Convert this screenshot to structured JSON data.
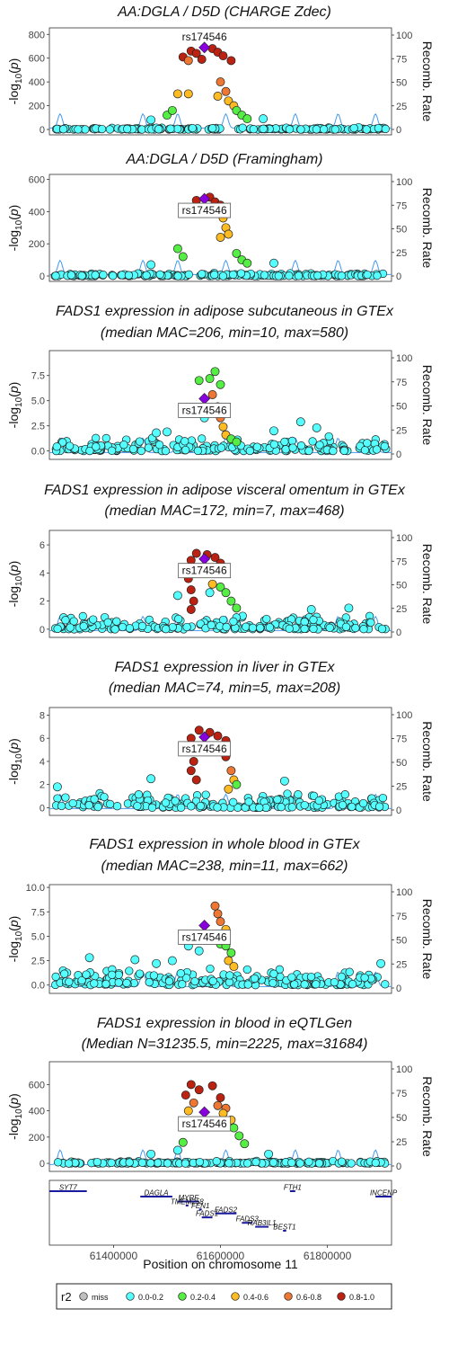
{
  "chart_data": [
    {
      "type": "scatter",
      "title_lines": [
        "AA:DGLA / D5D (CHARGE Zdec)"
      ],
      "ylabel": "-log10(p)",
      "y2label": "Recomb. Rate",
      "ylim": [
        0,
        840
      ],
      "yticks": [
        0,
        200,
        400,
        600,
        800
      ],
      "y2ticks": [
        0,
        25,
        50,
        75,
        100
      ],
      "lead_snp": {
        "label": "rs174546",
        "x": 61570000,
        "y": 690
      },
      "label_boxed": false,
      "points": [
        {
          "x": 61530000,
          "y": 610,
          "r2": "0.8-1.0"
        },
        {
          "x": 61545000,
          "y": 660,
          "r2": "0.8-1.0"
        },
        {
          "x": 61555000,
          "y": 640,
          "r2": "0.8-1.0"
        },
        {
          "x": 61565000,
          "y": 590,
          "r2": "0.8-1.0"
        },
        {
          "x": 61585000,
          "y": 680,
          "r2": "0.8-1.0"
        },
        {
          "x": 61595000,
          "y": 650,
          "r2": "0.8-1.0"
        },
        {
          "x": 61605000,
          "y": 620,
          "r2": "0.8-1.0"
        },
        {
          "x": 61620000,
          "y": 580,
          "r2": "0.8-1.0"
        },
        {
          "x": 61540000,
          "y": 580,
          "r2": "0.6-0.8"
        },
        {
          "x": 61600000,
          "y": 400,
          "r2": "0.6-0.8"
        },
        {
          "x": 61610000,
          "y": 320,
          "r2": "0.6-0.8"
        },
        {
          "x": 61520000,
          "y": 300,
          "r2": "0.4-0.6"
        },
        {
          "x": 61540000,
          "y": 300,
          "r2": "0.4-0.6"
        },
        {
          "x": 61595000,
          "y": 280,
          "r2": "0.4-0.6"
        },
        {
          "x": 61615000,
          "y": 240,
          "r2": "0.4-0.6"
        },
        {
          "x": 61625000,
          "y": 200,
          "r2": "0.4-0.6"
        },
        {
          "x": 61500000,
          "y": 120,
          "r2": "0.2-0.4"
        },
        {
          "x": 61510000,
          "y": 160,
          "r2": "0.2-0.4"
        },
        {
          "x": 61630000,
          "y": 160,
          "r2": "0.2-0.4"
        },
        {
          "x": 61640000,
          "y": 120,
          "r2": "0.2-0.4"
        },
        {
          "x": 61650000,
          "y": 90,
          "r2": "0.2-0.4"
        },
        {
          "x": 61470000,
          "y": 80,
          "r2": "0.0-0.2"
        },
        {
          "x": 61680000,
          "y": 90,
          "r2": "0.0-0.2"
        }
      ],
      "noise_max": 20
    },
    {
      "type": "scatter",
      "title_lines": [
        "AA:DGLA / D5D (Framingham)"
      ],
      "ylabel": "-log10(p)",
      "y2label": "Recomb. Rate",
      "ylim": [
        0,
        620
      ],
      "yticks": [
        0,
        200,
        400,
        600
      ],
      "y2ticks": [
        0,
        25,
        50,
        75,
        100
      ],
      "lead_snp": {
        "label": "rs174546",
        "x": 61570000,
        "y": 480
      },
      "label_boxed": true,
      "points": [
        {
          "x": 61555000,
          "y": 470,
          "r2": "0.8-1.0"
        },
        {
          "x": 61580000,
          "y": 490,
          "r2": "0.8-1.0"
        },
        {
          "x": 61590000,
          "y": 460,
          "r2": "0.8-1.0"
        },
        {
          "x": 61600000,
          "y": 440,
          "r2": "0.8-1.0"
        },
        {
          "x": 61595000,
          "y": 400,
          "r2": "0.6-0.8"
        },
        {
          "x": 61605000,
          "y": 360,
          "r2": "0.4-0.6"
        },
        {
          "x": 61610000,
          "y": 300,
          "r2": "0.4-0.6"
        },
        {
          "x": 61615000,
          "y": 260,
          "r2": "0.4-0.6"
        },
        {
          "x": 61600000,
          "y": 240,
          "r2": "0.4-0.6"
        },
        {
          "x": 61520000,
          "y": 170,
          "r2": "0.2-0.4"
        },
        {
          "x": 61530000,
          "y": 120,
          "r2": "0.2-0.4"
        },
        {
          "x": 61630000,
          "y": 140,
          "r2": "0.2-0.4"
        },
        {
          "x": 61640000,
          "y": 100,
          "r2": "0.2-0.4"
        },
        {
          "x": 61650000,
          "y": 80,
          "r2": "0.2-0.4"
        },
        {
          "x": 61470000,
          "y": 70,
          "r2": "0.0-0.2"
        },
        {
          "x": 61700000,
          "y": 80,
          "r2": "0.0-0.2"
        }
      ],
      "noise_max": 20
    },
    {
      "type": "scatter",
      "title_lines": [
        "FADS1 expression in adipose subcutaneous in GTEx",
        "(median MAC=206, min=10, max=580)"
      ],
      "ylabel": "-log10(p)",
      "y2label": "Recomb. Rate",
      "ylim": [
        -0.3,
        9.8
      ],
      "yticks": [
        0,
        2.5,
        5,
        7.5
      ],
      "ytick_labels": [
        "0.0",
        "2.5",
        "5.0",
        "7.5"
      ],
      "y2ticks": [
        0,
        25,
        50,
        75,
        100
      ],
      "lead_snp": {
        "label": "rs174546",
        "x": 61570000,
        "y": 5.2
      },
      "label_boxed": true,
      "points": [
        {
          "x": 61590000,
          "y": 7.9,
          "r2": "0.2-0.4"
        },
        {
          "x": 61580000,
          "y": 7.2,
          "r2": "0.2-0.4"
        },
        {
          "x": 61560000,
          "y": 7.0,
          "r2": "0.2-0.4"
        },
        {
          "x": 61600000,
          "y": 6.6,
          "r2": "0.2-0.4"
        },
        {
          "x": 61585000,
          "y": 5.6,
          "r2": "0.6-0.8"
        },
        {
          "x": 61595000,
          "y": 4.4,
          "r2": "0.8-1.0"
        },
        {
          "x": 61600000,
          "y": 3.3,
          "r2": "0.6-0.8"
        },
        {
          "x": 61590000,
          "y": 3.9,
          "r2": "0.6-0.8"
        },
        {
          "x": 61605000,
          "y": 2.4,
          "r2": "0.4-0.6"
        },
        {
          "x": 61610000,
          "y": 1.6,
          "r2": "0.4-0.6"
        },
        {
          "x": 61620000,
          "y": 1.2,
          "r2": "0.2-0.4"
        },
        {
          "x": 61630000,
          "y": 0.9,
          "r2": "0.2-0.4"
        },
        {
          "x": 61570000,
          "y": 3.3,
          "r2": "0.0-0.2"
        },
        {
          "x": 61750000,
          "y": 2.9,
          "r2": "0.0-0.2"
        },
        {
          "x": 61780000,
          "y": 2.3,
          "r2": "0.0-0.2"
        },
        {
          "x": 61700000,
          "y": 2.0,
          "r2": "0.0-0.2"
        },
        {
          "x": 61480000,
          "y": 1.8,
          "r2": "0.0-0.2"
        },
        {
          "x": 61500000,
          "y": 1.9,
          "r2": "0.0-0.2"
        }
      ],
      "noise_max": 1.6
    },
    {
      "type": "scatter",
      "title_lines": [
        "FADS1 expression in adipose visceral omentum in GTEx",
        "(median MAC=172, min=7, max=468)"
      ],
      "ylabel": "-log10(p)",
      "y2label": "Recomb. Rate",
      "ylim": [
        -0.2,
        6.9
      ],
      "yticks": [
        0,
        2,
        4,
        6
      ],
      "y2ticks": [
        0,
        25,
        50,
        75,
        100
      ],
      "lead_snp": {
        "label": "rs174546",
        "x": 61570000,
        "y": 5.0
      },
      "label_boxed": true,
      "points": [
        {
          "x": 61555000,
          "y": 5.4,
          "r2": "0.8-1.0"
        },
        {
          "x": 61575000,
          "y": 5.3,
          "r2": "0.8-1.0"
        },
        {
          "x": 61590000,
          "y": 5.1,
          "r2": "0.8-1.0"
        },
        {
          "x": 61545000,
          "y": 4.9,
          "r2": "0.8-1.0"
        },
        {
          "x": 61600000,
          "y": 4.7,
          "r2": "0.8-1.0"
        },
        {
          "x": 61540000,
          "y": 3.6,
          "r2": "0.8-1.0"
        },
        {
          "x": 61545000,
          "y": 2.8,
          "r2": "0.8-1.0"
        },
        {
          "x": 61550000,
          "y": 2.0,
          "r2": "0.8-1.0"
        },
        {
          "x": 61545000,
          "y": 1.4,
          "r2": "0.8-1.0"
        },
        {
          "x": 61585000,
          "y": 3.2,
          "r2": "0.4-0.6"
        },
        {
          "x": 61600000,
          "y": 3.0,
          "r2": "0.2-0.4"
        },
        {
          "x": 61610000,
          "y": 2.6,
          "r2": "0.2-0.4"
        },
        {
          "x": 61620000,
          "y": 2.0,
          "r2": "0.2-0.4"
        },
        {
          "x": 61630000,
          "y": 1.5,
          "r2": "0.2-0.4"
        },
        {
          "x": 61520000,
          "y": 2.4,
          "r2": "0.0-0.2"
        },
        {
          "x": 61580000,
          "y": 2.6,
          "r2": "0.0-0.2"
        },
        {
          "x": 61770000,
          "y": 1.4,
          "r2": "0.0-0.2"
        },
        {
          "x": 61840000,
          "y": 1.5,
          "r2": "0.0-0.2"
        }
      ],
      "noise_max": 1.1
    },
    {
      "type": "scatter",
      "title_lines": [
        "FADS1 expression in liver in GTEx",
        "(median MAC=74, min=5, max=208)"
      ],
      "ylabel": "-log10(p)",
      "y2label": "Recomb. Rate",
      "ylim": [
        -0.2,
        8.5
      ],
      "yticks": [
        0,
        2,
        4,
        6,
        8
      ],
      "y2ticks": [
        0,
        25,
        50,
        75,
        100
      ],
      "lead_snp": {
        "label": "rs174546",
        "x": 61570000,
        "y": 6.1
      },
      "label_boxed": true,
      "points": [
        {
          "x": 61560000,
          "y": 6.7,
          "r2": "0.8-1.0"
        },
        {
          "x": 61580000,
          "y": 6.5,
          "r2": "0.8-1.0"
        },
        {
          "x": 61595000,
          "y": 6.2,
          "r2": "0.8-1.0"
        },
        {
          "x": 61545000,
          "y": 6.0,
          "r2": "0.8-1.0"
        },
        {
          "x": 61610000,
          "y": 5.8,
          "r2": "0.8-1.0"
        },
        {
          "x": 61550000,
          "y": 4.0,
          "r2": "0.8-1.0"
        },
        {
          "x": 61545000,
          "y": 3.2,
          "r2": "0.8-1.0"
        },
        {
          "x": 61555000,
          "y": 2.4,
          "r2": "0.8-1.0"
        },
        {
          "x": 61610000,
          "y": 4.4,
          "r2": "0.8-1.0"
        },
        {
          "x": 61620000,
          "y": 3.2,
          "r2": "0.6-0.8"
        },
        {
          "x": 61625000,
          "y": 2.4,
          "r2": "0.4-0.6"
        },
        {
          "x": 61615000,
          "y": 1.6,
          "r2": "0.4-0.6"
        },
        {
          "x": 61630000,
          "y": 2.0,
          "r2": "0.2-0.4"
        },
        {
          "x": 61470000,
          "y": 2.5,
          "r2": "0.0-0.2"
        },
        {
          "x": 61295000,
          "y": 1.8,
          "r2": "0.0-0.2"
        },
        {
          "x": 61720000,
          "y": 2.3,
          "r2": "0.0-0.2"
        }
      ],
      "noise_max": 1.3
    },
    {
      "type": "scatter",
      "title_lines": [
        "FADS1 expression in whole blood in GTEx",
        "(median MAC=238, min=11, max=662)"
      ],
      "ylabel": "-log10(p)",
      "y2label": "Recomb. Rate",
      "ylim": [
        -0.3,
        10.1
      ],
      "yticks": [
        0,
        2.5,
        5,
        7.5,
        10
      ],
      "ytick_labels": [
        "0.0",
        "2.5",
        "5.0",
        "7.5",
        "10.0"
      ],
      "y2ticks": [
        0,
        25,
        50,
        75,
        100
      ],
      "lead_snp": {
        "label": "rs174546",
        "x": 61570000,
        "y": 6.1
      },
      "label_boxed": true,
      "points": [
        {
          "x": 61590000,
          "y": 8.1,
          "r2": "0.6-0.8"
        },
        {
          "x": 61595000,
          "y": 7.3,
          "r2": "0.6-0.8"
        },
        {
          "x": 61600000,
          "y": 6.5,
          "r2": "0.6-0.8"
        },
        {
          "x": 61610000,
          "y": 5.7,
          "r2": "0.4-0.6"
        },
        {
          "x": 61600000,
          "y": 4.2,
          "r2": "0.2-0.4"
        },
        {
          "x": 61610000,
          "y": 4.0,
          "r2": "0.2-0.4"
        },
        {
          "x": 61620000,
          "y": 3.3,
          "r2": "0.2-0.4"
        },
        {
          "x": 61615000,
          "y": 2.5,
          "r2": "0.4-0.6"
        },
        {
          "x": 61625000,
          "y": 1.9,
          "r2": "0.4-0.6"
        },
        {
          "x": 61540000,
          "y": 4.0,
          "r2": "0.0-0.2"
        },
        {
          "x": 61560000,
          "y": 3.5,
          "r2": "0.0-0.2"
        },
        {
          "x": 61355000,
          "y": 2.8,
          "r2": "0.0-0.2"
        },
        {
          "x": 61440000,
          "y": 2.6,
          "r2": "0.0-0.2"
        },
        {
          "x": 61480000,
          "y": 2.2,
          "r2": "0.0-0.2"
        },
        {
          "x": 61510000,
          "y": 2.5,
          "r2": "0.0-0.2"
        },
        {
          "x": 61900000,
          "y": 2.2,
          "r2": "0.0-0.2"
        }
      ],
      "noise_max": 1.9
    },
    {
      "type": "scatter",
      "title_lines": [
        "FADS1 expression in blood in eQTLGen",
        "(Median N=31235.5, min=2225, max=31684)"
      ],
      "ylabel": "-log10(p)",
      "y2label": "Recomb. Rate",
      "ylim": [
        -20,
        760
      ],
      "yticks": [
        0,
        200,
        400,
        600
      ],
      "y2ticks": [
        0,
        25,
        50,
        75,
        100
      ],
      "lead_snp": {
        "label": "rs174546",
        "x": 61570000,
        "y": 390
      },
      "label_boxed": true,
      "points": [
        {
          "x": 61545000,
          "y": 600,
          "r2": "0.8-1.0"
        },
        {
          "x": 61585000,
          "y": 590,
          "r2": "0.8-1.0"
        },
        {
          "x": 61560000,
          "y": 560,
          "r2": "0.8-1.0"
        },
        {
          "x": 61535000,
          "y": 520,
          "r2": "0.8-1.0"
        },
        {
          "x": 61600000,
          "y": 500,
          "r2": "0.8-1.0"
        },
        {
          "x": 61550000,
          "y": 460,
          "r2": "0.6-0.8"
        },
        {
          "x": 61595000,
          "y": 440,
          "r2": "0.6-0.8"
        },
        {
          "x": 61610000,
          "y": 420,
          "r2": "0.6-0.8"
        },
        {
          "x": 61540000,
          "y": 400,
          "r2": "0.4-0.6"
        },
        {
          "x": 61605000,
          "y": 380,
          "r2": "0.4-0.6"
        },
        {
          "x": 61620000,
          "y": 330,
          "r2": "0.4-0.6"
        },
        {
          "x": 61625000,
          "y": 270,
          "r2": "0.2-0.4"
        },
        {
          "x": 61635000,
          "y": 210,
          "r2": "0.2-0.4"
        },
        {
          "x": 61645000,
          "y": 150,
          "r2": "0.2-0.4"
        },
        {
          "x": 61530000,
          "y": 160,
          "r2": "0.2-0.4"
        },
        {
          "x": 61520000,
          "y": 100,
          "r2": "0.0-0.2"
        },
        {
          "x": 61470000,
          "y": 70,
          "r2": "0.0-0.2"
        },
        {
          "x": 61690000,
          "y": 70,
          "r2": "0.0-0.2"
        }
      ],
      "noise_max": 20
    }
  ],
  "gene_track": {
    "xlabel": "Position on chromosome 11",
    "xlim": [
      61280000,
      61920000
    ],
    "xticks": [
      61400000,
      61600000,
      61800000
    ],
    "xtick_labels": [
      "61400000",
      "61600000",
      "61800000"
    ],
    "genes": [
      {
        "name": "SYT7",
        "start": 61280000,
        "end": 61350000,
        "row": 0
      },
      {
        "name": "FTH1",
        "start": 61730000,
        "end": 61740000,
        "row": 0
      },
      {
        "name": "INCENP",
        "start": 61890000,
        "end": 61920000,
        "row": 0.55
      },
      {
        "name": "DAGLA",
        "start": 61450000,
        "end": 61510000,
        "row": 0.55
      },
      {
        "name": "MYRF",
        "start": 61520000,
        "end": 61560000,
        "row": 1.05
      },
      {
        "name": "TMEM258",
        "start": 61535000,
        "end": 61538000,
        "row": 1.45
      },
      {
        "name": "FEN1",
        "start": 61560000,
        "end": 61563000,
        "row": 1.85
      },
      {
        "name": "FADS2",
        "start": 61590000,
        "end": 61630000,
        "row": 2.25
      },
      {
        "name": "FADS1",
        "start": 61565000,
        "end": 61585000,
        "row": 2.65
      },
      {
        "name": "FADS3",
        "start": 61640000,
        "end": 61660000,
        "row": 3.2
      },
      {
        "name": "RAB3IL1",
        "start": 61665000,
        "end": 61690000,
        "row": 3.6
      },
      {
        "name": "BEST1",
        "start": 61717000,
        "end": 61723000,
        "row": 4.0
      }
    ]
  },
  "legend": {
    "title": "r2",
    "items": [
      {
        "label": "miss",
        "color": "#bfbfbf"
      },
      {
        "label": "0.0-0.2",
        "color": "#55ffff"
      },
      {
        "label": "0.2-0.4",
        "color": "#55ee44"
      },
      {
        "label": "0.4-0.6",
        "color": "#ffbb22"
      },
      {
        "label": "0.6-0.8",
        "color": "#ee7733"
      },
      {
        "label": "0.8-1.0",
        "color": "#bb2211"
      }
    ]
  },
  "colors": {
    "lead": "#8800dd",
    "recomb": "#4499ee",
    "gene": "#1a1aa0"
  }
}
